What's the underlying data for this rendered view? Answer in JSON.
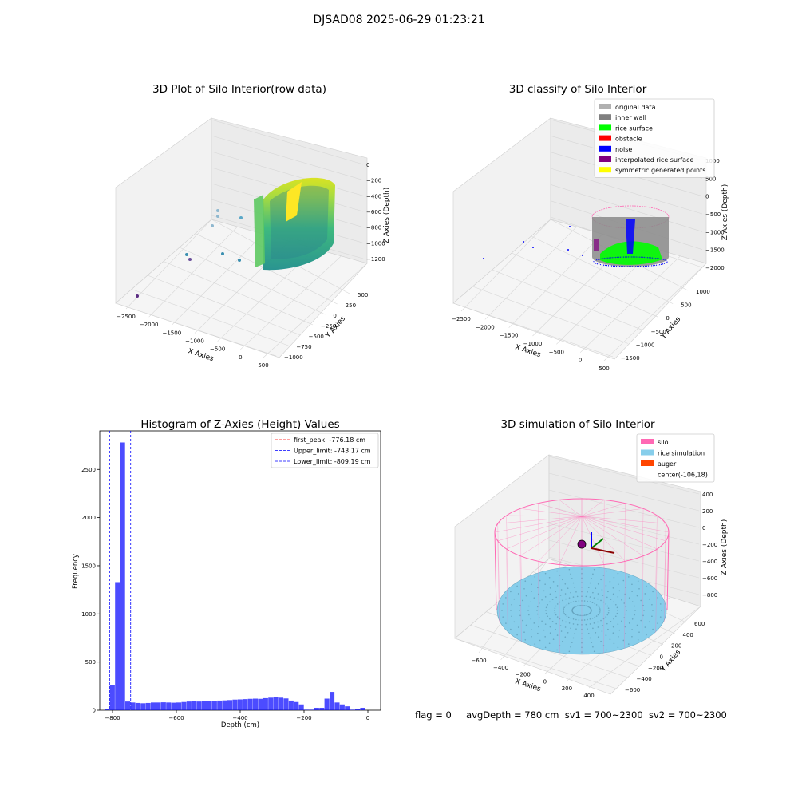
{
  "figure": {
    "suptitle": "DJSAD08 2025-06-29 01:23:21"
  },
  "panels": {
    "raw": {
      "title": "3D Plot of Silo Interior(row data)",
      "xlabel": "X Axies",
      "ylabel": "Y Axies",
      "zlabel": "Z Axies (Depth)",
      "xticks": [
        "−2500",
        "−2000",
        "−1500",
        "−1000",
        "−500",
        "0",
        "500"
      ],
      "yticks": [
        "500",
        "250",
        "0",
        "−250",
        "−500",
        "−750",
        "−1000"
      ],
      "zticks": [
        "0",
        "−200",
        "−400",
        "−600",
        "−800",
        "−1000",
        "−1200"
      ]
    },
    "classify": {
      "title": "3D classify of Silo Interior",
      "xlabel": "X Axies",
      "ylabel": "Y Axies",
      "zlabel": "Z Axies (Depth)",
      "xticks": [
        "−2500",
        "−2000",
        "−1500",
        "−1000",
        "−500",
        "0",
        "500"
      ],
      "yticks": [
        "1000",
        "500",
        "0",
        "−500",
        "−1000",
        "−1500"
      ],
      "zticks": [
        "1000",
        "500",
        "0",
        "−500",
        "−1000",
        "−1500",
        "−2000"
      ],
      "legend": [
        {
          "label": "original data",
          "color": "#b0b0b0"
        },
        {
          "label": "inner wall",
          "color": "#808080"
        },
        {
          "label": "rice surface",
          "color": "#00ff00"
        },
        {
          "label": "obstacle",
          "color": "#ff0000"
        },
        {
          "label": "noise",
          "color": "#0000ff"
        },
        {
          "label": "interpolated rice surface",
          "color": "#800080"
        },
        {
          "label": "symmetric generated points",
          "color": "#ffff00"
        }
      ]
    },
    "simulation": {
      "title": "3D simulation of Silo Interior",
      "xlabel": "X Axies",
      "ylabel": "Y Axies",
      "zlabel": "Z Axies (Depth)",
      "xticks": [
        "−600",
        "−400",
        "−200",
        "0",
        "200",
        "400"
      ],
      "yticks": [
        "600",
        "400",
        "200",
        "0",
        "−200",
        "−400",
        "−600"
      ],
      "zticks": [
        "400",
        "200",
        "0",
        "−200",
        "−400",
        "−600",
        "−800"
      ],
      "legend": [
        {
          "label": "silo",
          "color": "#ff69b4"
        },
        {
          "label": "rice simulation",
          "color": "#87ceeb"
        },
        {
          "label": "auger",
          "color": "#ff4500"
        },
        {
          "label": "center(-106,18)",
          "color": ""
        }
      ]
    }
  },
  "chart_data": [
    {
      "type": "bar",
      "title": "Histogram of Z-Axies (Height) Values",
      "xlabel": "Depth (cm)",
      "ylabel": "Frequency",
      "xlim": [
        -840,
        40
      ],
      "ylim": [
        0,
        2900
      ],
      "xticks": [
        -800,
        -600,
        -400,
        -200,
        0
      ],
      "yticks": [
        0,
        500,
        1000,
        1500,
        2000,
        2500
      ],
      "bin_width": 16,
      "bins": [
        {
          "x0": -824,
          "count": 10
        },
        {
          "x0": -808,
          "count": 260
        },
        {
          "x0": -792,
          "count": 1330
        },
        {
          "x0": -776,
          "count": 2780
        },
        {
          "x0": -760,
          "count": 90
        },
        {
          "x0": -744,
          "count": 80
        },
        {
          "x0": -728,
          "count": 75
        },
        {
          "x0": -712,
          "count": 72
        },
        {
          "x0": -696,
          "count": 75
        },
        {
          "x0": -680,
          "count": 80
        },
        {
          "x0": -664,
          "count": 80
        },
        {
          "x0": -648,
          "count": 82
        },
        {
          "x0": -632,
          "count": 80
        },
        {
          "x0": -616,
          "count": 78
        },
        {
          "x0": -600,
          "count": 80
        },
        {
          "x0": -584,
          "count": 85
        },
        {
          "x0": -568,
          "count": 90
        },
        {
          "x0": -552,
          "count": 92
        },
        {
          "x0": -536,
          "count": 90
        },
        {
          "x0": -520,
          "count": 92
        },
        {
          "x0": -504,
          "count": 95
        },
        {
          "x0": -488,
          "count": 98
        },
        {
          "x0": -472,
          "count": 100
        },
        {
          "x0": -456,
          "count": 102
        },
        {
          "x0": -440,
          "count": 105
        },
        {
          "x0": -424,
          "count": 110
        },
        {
          "x0": -408,
          "count": 112
        },
        {
          "x0": -392,
          "count": 115
        },
        {
          "x0": -376,
          "count": 118
        },
        {
          "x0": -360,
          "count": 120
        },
        {
          "x0": -344,
          "count": 118
        },
        {
          "x0": -328,
          "count": 125
        },
        {
          "x0": -312,
          "count": 130
        },
        {
          "x0": -296,
          "count": 135
        },
        {
          "x0": -280,
          "count": 130
        },
        {
          "x0": -264,
          "count": 122
        },
        {
          "x0": -248,
          "count": 100
        },
        {
          "x0": -232,
          "count": 85
        },
        {
          "x0": -216,
          "count": 60
        },
        {
          "x0": -200,
          "count": 5
        },
        {
          "x0": -184,
          "count": 5
        },
        {
          "x0": -168,
          "count": 25
        },
        {
          "x0": -152,
          "count": 25
        },
        {
          "x0": -136,
          "count": 120
        },
        {
          "x0": -120,
          "count": 190
        },
        {
          "x0": -104,
          "count": 80
        },
        {
          "x0": -88,
          "count": 60
        },
        {
          "x0": -72,
          "count": 40
        },
        {
          "x0": -56,
          "count": 5
        },
        {
          "x0": -40,
          "count": 10
        },
        {
          "x0": -24,
          "count": 25
        }
      ],
      "bar_color": "#0000ff",
      "vlines": [
        {
          "x": -776.18,
          "color": "#ff0000",
          "label": "first_peak: -776.18 cm"
        },
        {
          "x": -743.17,
          "color": "#0000ff",
          "label": "Upper_limit: -743.17 cm"
        },
        {
          "x": -809.19,
          "color": "#0000ff",
          "label": "Lower_limit: -809.19 cm"
        }
      ],
      "legend_position": "upper right"
    }
  ],
  "footer": {
    "flag": "flag = 0",
    "avgDepth": "avgDepth = 780 cm",
    "sv1": "sv1 = 700~2300",
    "sv2": "sv2 = 700~2300"
  }
}
